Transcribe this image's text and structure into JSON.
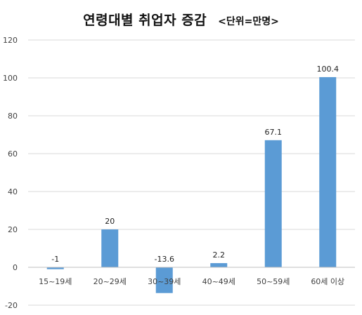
{
  "chart_data": {
    "type": "bar",
    "title": "연령대별 취업자 증감",
    "unit_label": "<단위=만명>",
    "categories": [
      "15~19세",
      "20~29세",
      "30~39세",
      "40~49세",
      "50~59세",
      "60세 이상"
    ],
    "values": [
      -1,
      20,
      -13.6,
      2.2,
      67.1,
      100.4
    ],
    "value_labels": [
      "-1",
      "20",
      "-13.6",
      "2.2",
      "67.1",
      "100.4"
    ],
    "ylim": [
      -20,
      120
    ],
    "yticks": [
      -20,
      0,
      20,
      40,
      60,
      80,
      100,
      120
    ],
    "grid": true,
    "legend": "none",
    "bar_color": "#5B9BD5",
    "grid_color": "#D9D9D9",
    "axis_color": "#BFBFBF"
  }
}
